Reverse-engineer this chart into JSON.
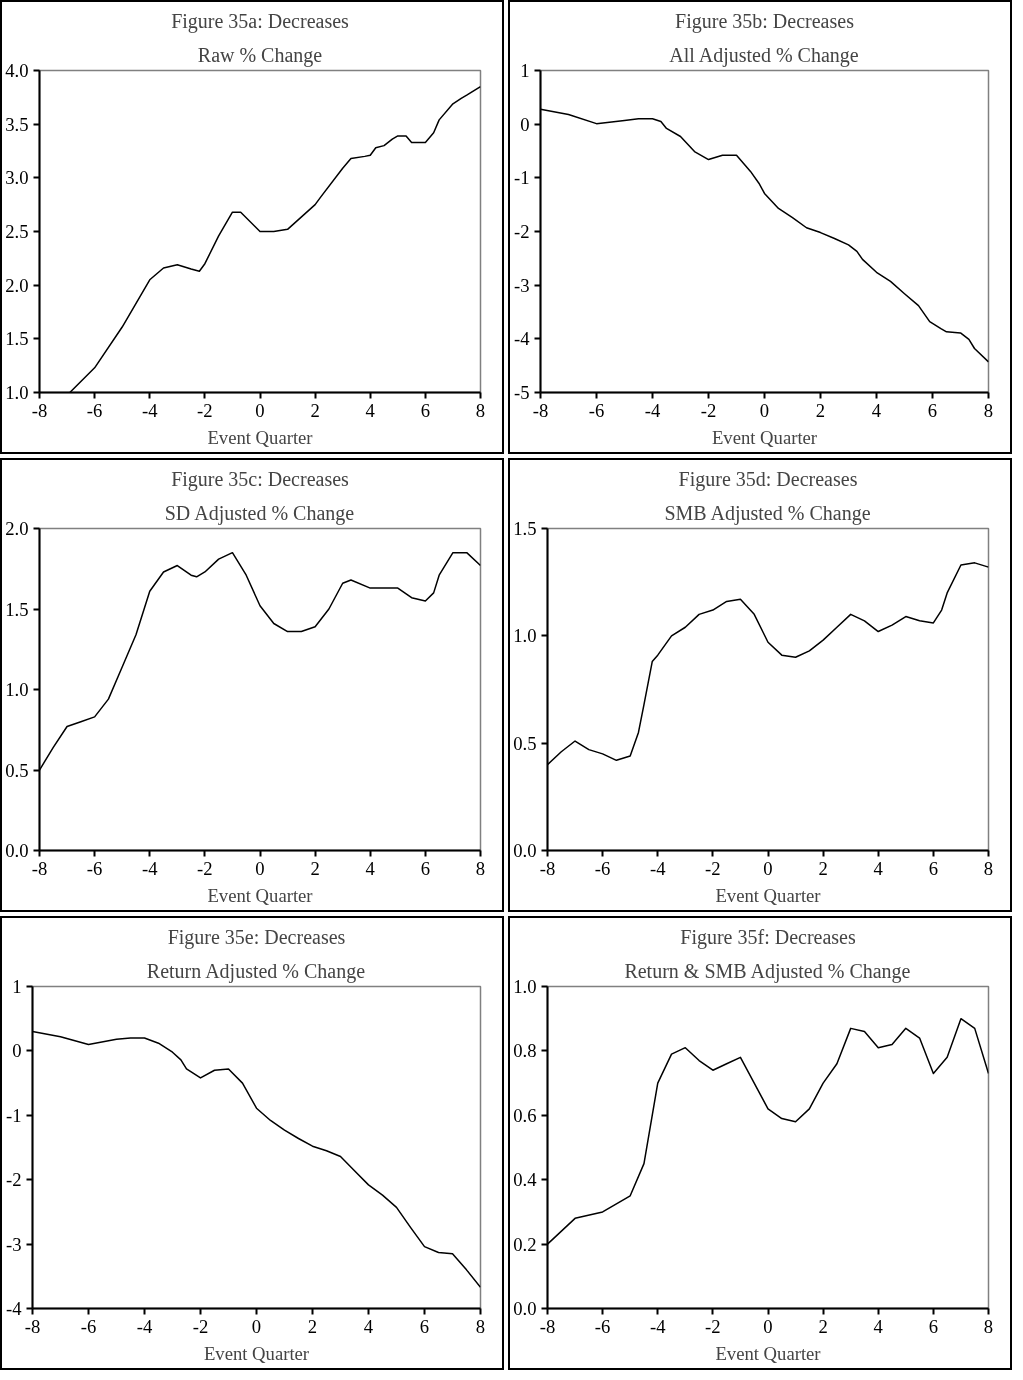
{
  "chart_data": [
    {
      "type": "line",
      "title": "Figure 35a: Decreases",
      "subtitle": "Raw % Change",
      "xlabel": "Event Quarter",
      "color": "#000000",
      "x": [
        -6.9,
        -6,
        -5,
        -4,
        -3.5,
        -3,
        -2.5,
        -2.2,
        -2,
        -1.5,
        -1,
        -0.7,
        0,
        0.5,
        1,
        2,
        2.2,
        3,
        3.3,
        3.8,
        4,
        4.2,
        4.5,
        4.8,
        5,
        5.3,
        5.5,
        6,
        6.3,
        6.5,
        7,
        7.3,
        7.5,
        8
      ],
      "values": [
        1.0,
        1.23,
        1.61,
        2.05,
        2.16,
        2.19,
        2.15,
        2.13,
        2.2,
        2.46,
        2.68,
        2.68,
        2.5,
        2.5,
        2.52,
        2.75,
        2.82,
        3.09,
        3.18,
        3.2,
        3.21,
        3.28,
        3.3,
        3.36,
        3.39,
        3.39,
        3.33,
        3.33,
        3.42,
        3.54,
        3.69,
        3.74,
        3.77,
        3.85
      ],
      "xlim": [
        -8,
        8
      ],
      "xticks": [
        -8,
        -6,
        -4,
        -2,
        0,
        2,
        4,
        6,
        8
      ],
      "ylim": [
        1.0,
        4.0
      ],
      "yticks": [
        {
          "value": 1,
          "label": "1.0"
        },
        1.5,
        {
          "value": 2,
          "label": "2.0"
        },
        2.5,
        {
          "value": 3,
          "label": "3.0"
        },
        3.5,
        {
          "value": 4,
          "label": "4.0"
        }
      ]
    },
    {
      "type": "line",
      "title": "Figure 35b: Decreases",
      "subtitle": "All Adjusted % Change",
      "xlabel": "Event Quarter",
      "color": "#000000",
      "x": [
        -8,
        -7,
        -6,
        -5,
        -4.5,
        -4,
        -3.7,
        -3.5,
        -3,
        -2.5,
        -2,
        -1.5,
        -1,
        -0.5,
        -0.2,
        0,
        0.5,
        1,
        1.5,
        2,
        2.5,
        3,
        3.3,
        3.5,
        4,
        4.5,
        5,
        5.5,
        5.9,
        6.3,
        6.5,
        7,
        7.3,
        7.5,
        8
      ],
      "values": [
        0.28,
        0.18,
        0.01,
        0.07,
        0.1,
        0.1,
        0.05,
        -0.08,
        -0.23,
        -0.51,
        -0.66,
        -0.58,
        -0.58,
        -0.88,
        -1.1,
        -1.29,
        -1.57,
        -1.74,
        -1.93,
        -2.02,
        -2.13,
        -2.25,
        -2.37,
        -2.52,
        -2.76,
        -2.93,
        -3.16,
        -3.38,
        -3.68,
        -3.81,
        -3.87,
        -3.89,
        -4.01,
        -4.18,
        -4.43
      ],
      "xlim": [
        -8,
        8
      ],
      "xticks": [
        -8,
        -6,
        -4,
        -2,
        0,
        2,
        4,
        6,
        8
      ],
      "ylim": [
        -5,
        1
      ],
      "yticks": [
        -5,
        -4,
        -3,
        -2,
        -1,
        0,
        1
      ]
    },
    {
      "type": "line",
      "title": "Figure 35c: Decreases",
      "subtitle": "SD Adjusted % Change",
      "xlabel": "Event Quarter",
      "color": "#000000",
      "x": [
        -8,
        -7.5,
        -7,
        -6.5,
        -6,
        -5.5,
        -5,
        -4.5,
        -4,
        -3.5,
        -3,
        -2.5,
        -2.3,
        -2,
        -1.5,
        -1,
        -0.5,
        0,
        0.5,
        1,
        1.5,
        2,
        2.5,
        3,
        3.3,
        4,
        5,
        5.5,
        6,
        6.3,
        6.5,
        7,
        7.5,
        8
      ],
      "values": [
        0.5,
        0.64,
        0.77,
        0.8,
        0.83,
        0.94,
        1.14,
        1.34,
        1.61,
        1.73,
        1.77,
        1.71,
        1.7,
        1.73,
        1.81,
        1.85,
        1.71,
        1.52,
        1.41,
        1.36,
        1.36,
        1.39,
        1.5,
        1.66,
        1.68,
        1.63,
        1.63,
        1.57,
        1.55,
        1.6,
        1.71,
        1.85,
        1.85,
        1.77
      ],
      "xlim": [
        -8,
        8
      ],
      "xticks": [
        -8,
        -6,
        -4,
        -2,
        0,
        2,
        4,
        6,
        8
      ],
      "ylim": [
        0.0,
        2.0
      ],
      "yticks": [
        {
          "value": 0,
          "label": "0.0"
        },
        0.5,
        {
          "value": 1,
          "label": "1.0"
        },
        1.5,
        {
          "value": 2,
          "label": "2.0"
        }
      ]
    },
    {
      "type": "line",
      "title": "Figure 35d: Decreases",
      "subtitle": "SMB Adjusted % Change",
      "xlabel": "Event Quarter",
      "color": "#000000",
      "x": [
        -8,
        -7.5,
        -7,
        -6.5,
        -6,
        -5.5,
        -5,
        -4.7,
        -4.5,
        -4.2,
        -4,
        -3.5,
        -3,
        -2.5,
        -2,
        -1.5,
        -1,
        -0.5,
        0,
        0.5,
        1,
        1.5,
        2,
        2.5,
        3,
        3.5,
        4,
        4.5,
        5,
        5.5,
        6,
        6.3,
        6.5,
        7,
        7.5,
        8
      ],
      "values": [
        0.4,
        0.46,
        0.51,
        0.47,
        0.45,
        0.42,
        0.44,
        0.55,
        0.68,
        0.88,
        0.91,
        1.0,
        1.04,
        1.1,
        1.12,
        1.16,
        1.17,
        1.1,
        0.97,
        0.91,
        0.9,
        0.93,
        0.98,
        1.04,
        1.1,
        1.07,
        1.02,
        1.05,
        1.09,
        1.07,
        1.06,
        1.12,
        1.2,
        1.33,
        1.34,
        1.32
      ],
      "xlim": [
        -8,
        8
      ],
      "xticks": [
        -8,
        -6,
        -4,
        -2,
        0,
        2,
        4,
        6,
        8
      ],
      "ylim": [
        0.0,
        1.5
      ],
      "yticks": [
        {
          "value": 0,
          "label": "0.0"
        },
        0.5,
        {
          "value": 1,
          "label": "1.0"
        },
        1.5
      ]
    },
    {
      "type": "line",
      "title": "Figure 35e: Decreases",
      "subtitle": "Return Adjusted % Change",
      "xlabel": "Event Quarter",
      "color": "#000000",
      "x": [
        -8,
        -7,
        -6,
        -5,
        -4.5,
        -4,
        -3.5,
        -3,
        -2.7,
        -2.5,
        -2,
        -1.5,
        -1,
        -0.5,
        0,
        0.5,
        1,
        1.5,
        2,
        2.5,
        3,
        3.5,
        4,
        4.5,
        5,
        5.5,
        6,
        6.5,
        7,
        7.5,
        8
      ],
      "values": [
        0.3,
        0.22,
        0.1,
        0.18,
        0.2,
        0.2,
        0.12,
        -0.02,
        -0.14,
        -0.28,
        -0.42,
        -0.3,
        -0.28,
        -0.5,
        -0.89,
        -1.08,
        -1.23,
        -1.36,
        -1.48,
        -1.55,
        -1.64,
        -1.86,
        -2.08,
        -2.24,
        -2.43,
        -2.74,
        -3.04,
        -3.13,
        -3.15,
        -3.4,
        -3.67
      ],
      "xlim": [
        -8,
        8
      ],
      "xticks": [
        -8,
        -6,
        -4,
        -2,
        0,
        2,
        4,
        6,
        8
      ],
      "ylim": [
        -4,
        1
      ],
      "yticks": [
        -4,
        -3,
        -2,
        -1,
        0,
        1
      ]
    },
    {
      "type": "line",
      "title": "Figure 35f: Decreases",
      "subtitle": "Return & SMB Adjusted % Change",
      "xlabel": "Event Quarter",
      "color": "#000000",
      "x": [
        -8,
        -7,
        -6,
        -5,
        -4.5,
        -4,
        -3.5,
        -3,
        -2.5,
        -2,
        -1.5,
        -1,
        -0.5,
        0,
        0.5,
        1,
        1.5,
        2,
        2.5,
        3,
        3.5,
        4,
        4.5,
        5,
        5.5,
        6,
        6.5,
        7,
        7.5,
        8
      ],
      "values": [
        0.2,
        0.28,
        0.3,
        0.35,
        0.45,
        0.7,
        0.79,
        0.81,
        0.77,
        0.74,
        0.76,
        0.78,
        0.7,
        0.62,
        0.59,
        0.58,
        0.62,
        0.7,
        0.76,
        0.87,
        0.86,
        0.81,
        0.82,
        0.87,
        0.84,
        0.73,
        0.78,
        0.9,
        0.87,
        0.73
      ],
      "xlim": [
        -8,
        8
      ],
      "xticks": [
        -8,
        -6,
        -4,
        -2,
        0,
        2,
        4,
        6,
        8
      ],
      "ylim": [
        0.0,
        1.0
      ],
      "yticks": [
        {
          "value": 0,
          "label": "0.0"
        },
        0.2,
        0.4,
        0.6,
        0.8,
        {
          "value": 1,
          "label": "1.0"
        }
      ]
    }
  ]
}
